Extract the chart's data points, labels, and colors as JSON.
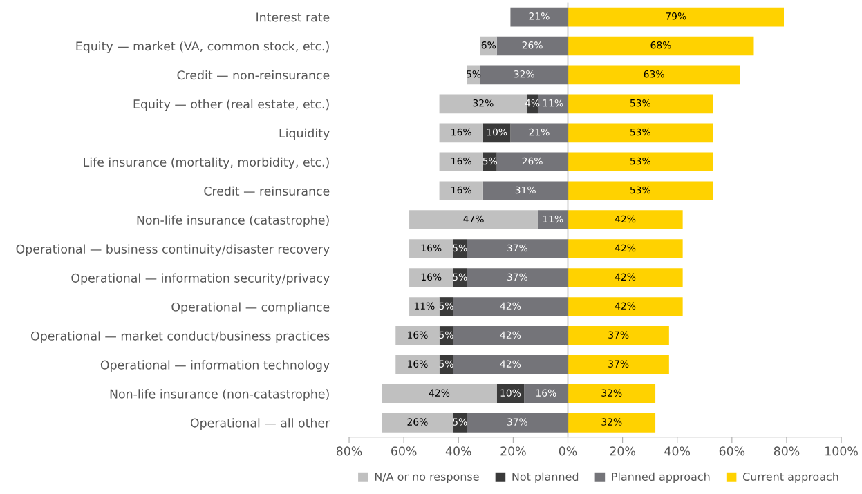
{
  "chart_data": {
    "type": "bar",
    "orientation": "horizontal",
    "categories": [
      "Interest rate",
      "Equity — market (VA, common stock, etc.)",
      "Credit — non-reinsurance",
      "Equity — other (real estate, etc.)",
      "Liquidity",
      "Life insurance (mortality, morbidity, etc.)",
      "Credit — reinsurance",
      "Non-life insurance (catastrophe)",
      "Operational — business continuity/disaster recovery",
      "Operational — information security/privacy",
      "Operational — compliance",
      "Operational — market conduct/business practices",
      "Operational — information technology",
      "Non-life insurance (non-catastrophe)",
      "Operational — all other"
    ],
    "series": [
      {
        "name": "Current approach",
        "color": "#ffd200",
        "values": [
          79,
          68,
          63,
          53,
          53,
          53,
          53,
          42,
          42,
          42,
          42,
          37,
          37,
          32,
          32
        ],
        "base": [
          0,
          0,
          0,
          0,
          0,
          0,
          0,
          0,
          0,
          0,
          0,
          0,
          0,
          0,
          0
        ],
        "value_labels": [
          "79%",
          "68%",
          "63%",
          "53%",
          "53%",
          "53%",
          "53%",
          "42%",
          "42%",
          "42%",
          "42%",
          "37%",
          "37%",
          "32%",
          "32%"
        ]
      },
      {
        "name": "Planned approach",
        "color": "#747479",
        "values": [
          21,
          26,
          32,
          11,
          21,
          26,
          31,
          11,
          37,
          37,
          42,
          42,
          42,
          16,
          37
        ],
        "base": [
          -21,
          -26,
          -32,
          -11,
          -21,
          -26,
          -31,
          -11,
          -37,
          -37,
          -42,
          -42,
          -42,
          -16,
          -37
        ],
        "value_labels": [
          "21%",
          "26%",
          "32%",
          "11%",
          "21%",
          "26%",
          "31%",
          "11%",
          "37%",
          "37%",
          "42%",
          "42%",
          "42%",
          "16%",
          "37%"
        ]
      },
      {
        "name": "Not planned",
        "color": "#3a3a3a",
        "values": [
          null,
          null,
          null,
          4,
          10,
          5,
          null,
          null,
          5,
          5,
          5,
          5,
          5,
          10,
          5
        ],
        "base": [
          null,
          null,
          null,
          -15,
          -31,
          -31,
          null,
          null,
          -42,
          -42,
          -47,
          -47,
          -47,
          -26,
          -42
        ],
        "value_labels": [
          null,
          null,
          null,
          "4%",
          "10%",
          "5%",
          null,
          null,
          "5%",
          "5%",
          "5%",
          "5%",
          "5%",
          "10%",
          "5%"
        ]
      },
      {
        "name": "N/A or no response",
        "color": "#c0c0c0",
        "values": [
          null,
          6,
          5,
          32,
          16,
          16,
          16,
          47,
          16,
          16,
          11,
          16,
          16,
          42,
          26
        ],
        "base": [
          null,
          -32,
          -37,
          -47,
          -47,
          -47,
          -47,
          -58,
          -58,
          -58,
          -58,
          -63,
          -63,
          -68,
          -68
        ],
        "value_labels": [
          null,
          "6%",
          "5%",
          "32%",
          "16%",
          "16%",
          "16%",
          "47%",
          "16%",
          "16%",
          "11%",
          "16%",
          "16%",
          "42%",
          "26%"
        ]
      }
    ],
    "xlim": [
      -80,
      100
    ],
    "xticks": [
      {
        "value": -80,
        "label": "80%"
      },
      {
        "value": -60,
        "label": "60%"
      },
      {
        "value": -40,
        "label": "40%"
      },
      {
        "value": -20,
        "label": "20%"
      },
      {
        "value": 0,
        "label": "0%"
      },
      {
        "value": 20,
        "label": "20%"
      },
      {
        "value": 40,
        "label": "40%"
      },
      {
        "value": 60,
        "label": "60%"
      },
      {
        "value": 80,
        "label": "80%"
      },
      {
        "value": 100,
        "label": "100%"
      }
    ],
    "ref_lines": [
      {
        "axis": "x",
        "value": 0,
        "color": "#808080"
      }
    ],
    "grid": false,
    "legend": "bottom"
  }
}
